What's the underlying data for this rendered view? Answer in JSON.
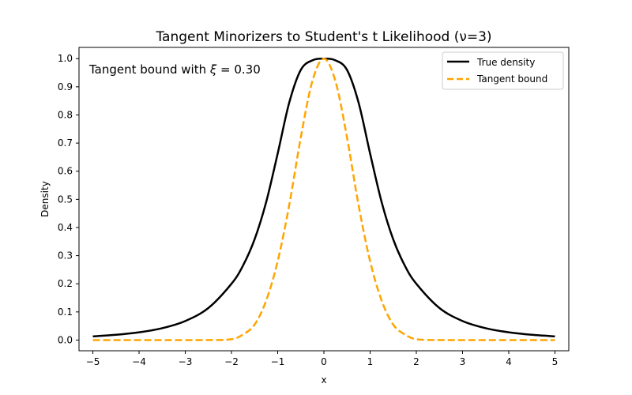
{
  "chart_data": {
    "type": "line",
    "title": "Tangent Minorizers to Student's t Likelihood (ν=3)",
    "xlabel": "x",
    "ylabel": "Density",
    "xlim": [
      -5.3,
      5.3
    ],
    "ylim": [
      -0.038,
      1.04
    ],
    "xticks": [
      -5,
      -4,
      -3,
      -2,
      -1,
      0,
      1,
      2,
      3,
      4,
      5
    ],
    "xtick_labels": [
      "−5",
      "−4",
      "−3",
      "−2",
      "−1",
      "0",
      "1",
      "2",
      "3",
      "4",
      "5"
    ],
    "yticks": [
      0.0,
      0.1,
      0.2,
      0.3,
      0.4,
      0.5,
      0.6,
      0.7,
      0.8,
      0.9,
      1.0
    ],
    "ytick_labels": [
      "0.0",
      "0.1",
      "0.2",
      "0.3",
      "0.4",
      "0.5",
      "0.6",
      "0.7",
      "0.8",
      "0.9",
      "1.0"
    ],
    "grid": false,
    "legend_position": "top-right",
    "annotation": {
      "prefix": "Tangent bound with ",
      "symbol": "ξ",
      "suffix": " = 0.30"
    },
    "x": [
      -5,
      -4.5,
      -4,
      -3.5,
      -3,
      -2.5,
      -2,
      -1.75,
      -1.5,
      -1.25,
      -1,
      -0.75,
      -0.5,
      -0.25,
      0,
      0.25,
      0.5,
      0.75,
      1,
      1.25,
      1.5,
      1.75,
      2,
      2.5,
      3,
      3.5,
      4,
      4.5,
      5
    ],
    "series": [
      {
        "name": "True density",
        "color": "#000000",
        "dash": "solid",
        "values": [
          0.0132,
          0.0187,
          0.0275,
          0.0422,
          0.0677,
          0.114,
          0.2,
          0.265,
          0.358,
          0.49,
          0.663,
          0.844,
          0.96,
          0.994,
          1.0,
          0.994,
          0.96,
          0.844,
          0.663,
          0.49,
          0.358,
          0.265,
          0.2,
          0.114,
          0.0677,
          0.0422,
          0.0275,
          0.0187,
          0.0132
        ]
      },
      {
        "name": "Tangent bound",
        "color": "#ffa500",
        "dash": "dashed",
        "values": [
          0.0,
          0.0,
          0.0,
          0.0,
          0.0,
          0.0002,
          0.003,
          0.02,
          0.055,
          0.14,
          0.28,
          0.48,
          0.72,
          0.92,
          1.0,
          0.92,
          0.72,
          0.48,
          0.28,
          0.14,
          0.055,
          0.02,
          0.003,
          0.0002,
          0.0,
          0.0,
          0.0,
          0.0,
          0.0
        ]
      }
    ]
  }
}
